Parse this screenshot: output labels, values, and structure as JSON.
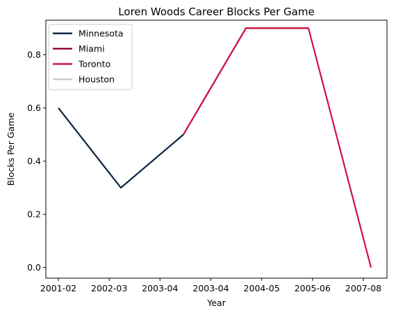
{
  "chart_data": {
    "type": "line",
    "title": "Loren Woods Career Blocks Per Game",
    "xlabel": "Year",
    "ylabel": "Blocks Per Game",
    "x_ticks": [
      "2001-02",
      "2002-03",
      "2003-04",
      "2003-04",
      "2004-05",
      "2005-06",
      "2007-08"
    ],
    "y_ticks": [
      0.0,
      0.2,
      0.4,
      0.6,
      0.8
    ],
    "y_tick_labels": [
      "0.0",
      "0.2",
      "0.4",
      "0.6",
      "0.8"
    ],
    "ylim": [
      -0.04,
      0.93
    ],
    "xlim": [
      -0.3,
      6.3
    ],
    "grid": false,
    "legend_position": "top-left",
    "series": [
      {
        "name": "Minnesota",
        "color": "#0c2340",
        "x": [
          0,
          1,
          2
        ],
        "y": [
          0.6,
          0.3,
          0.5
        ]
      },
      {
        "name": "Miami",
        "color": "#98002e",
        "x": [
          2,
          3,
          4
        ],
        "y": [
          0.5,
          0.9,
          0.9
        ]
      },
      {
        "name": "Toronto",
        "color": "#ce1141",
        "x": [
          2,
          3,
          4,
          5
        ],
        "y": [
          0.5,
          0.9,
          0.9,
          0.0
        ]
      },
      {
        "name": "Houston",
        "color": "#c4ced4",
        "x": [],
        "y": []
      }
    ],
    "x_data_points": [
      0,
      1,
      2,
      3,
      4,
      5
    ],
    "x_tick_positions": [
      0,
      0.8,
      1.6,
      2.4,
      3.2,
      4.0,
      4.8
    ]
  }
}
